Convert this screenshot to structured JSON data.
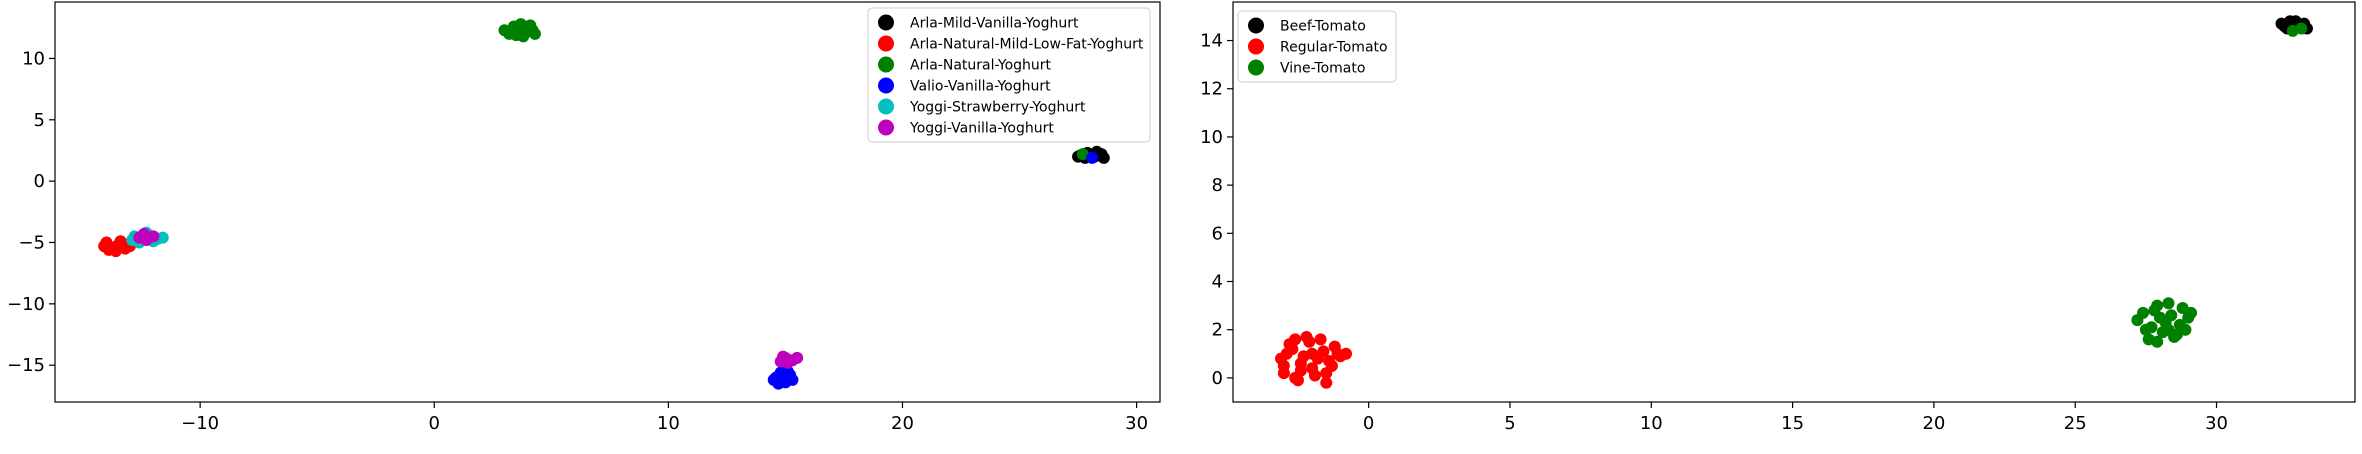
{
  "chart_data": [
    {
      "type": "scatter",
      "title": "",
      "xlabel": "",
      "ylabel": "",
      "xlim": [
        -16.2,
        31
      ],
      "ylim": [
        -18,
        14.6
      ],
      "xticks": [
        -10,
        0,
        10,
        20,
        30
      ],
      "yticks": [
        -15,
        -10,
        -5,
        0,
        5,
        10
      ],
      "xtick_labels": [
        "−10",
        "0",
        "10",
        "20",
        "30"
      ],
      "ytick_labels": [
        "−15",
        "−10",
        "−5",
        "0",
        "5",
        "10"
      ],
      "grid": false,
      "legend_position": "top-right",
      "series": [
        {
          "name": "Arla-Mild-Vanilla-Yoghurt",
          "color": "#000000",
          "points": [
            [
              27.6,
              2.1
            ],
            [
              27.9,
              2.3
            ],
            [
              28.2,
              2.0
            ],
            [
              28.5,
              2.2
            ],
            [
              27.8,
              1.9
            ],
            [
              28.3,
              2.4
            ],
            [
              28.6,
              1.9
            ],
            [
              28.0,
              2.1
            ],
            [
              27.5,
              2.0
            ],
            [
              28.4,
              2.1
            ]
          ]
        },
        {
          "name": "Arla-Natural-Mild-Low-Fat-Yoghurt",
          "color": "#ff0000",
          "points": [
            [
              -14.0,
              -5.0
            ],
            [
              -13.8,
              -5.4
            ],
            [
              -13.5,
              -5.2
            ],
            [
              -13.2,
              -5.5
            ],
            [
              -13.9,
              -5.6
            ],
            [
              -13.4,
              -4.9
            ],
            [
              -13.0,
              -5.3
            ],
            [
              -13.6,
              -5.7
            ],
            [
              -14.1,
              -5.3
            ],
            [
              -13.3,
              -5.1
            ]
          ]
        },
        {
          "name": "Arla-Natural-Yoghurt",
          "color": "#008000",
          "points": [
            [
              3.2,
              12.0
            ],
            [
              3.6,
              12.4
            ],
            [
              3.9,
              12.1
            ],
            [
              4.2,
              12.3
            ],
            [
              3.4,
              12.6
            ],
            [
              3.8,
              11.8
            ],
            [
              4.1,
              12.7
            ],
            [
              3.0,
              12.3
            ],
            [
              3.7,
              12.8
            ],
            [
              4.3,
              12.0
            ],
            [
              3.5,
              11.9
            ],
            [
              27.7,
              2.2
            ]
          ]
        },
        {
          "name": "Valio-Vanilla-Yoghurt",
          "color": "#0000ff",
          "points": [
            [
              14.6,
              -16.0
            ],
            [
              14.9,
              -16.3
            ],
            [
              15.2,
              -15.8
            ],
            [
              15.0,
              -16.4
            ],
            [
              14.8,
              -15.6
            ],
            [
              15.3,
              -16.2
            ],
            [
              14.7,
              -16.5
            ],
            [
              15.1,
              -15.5
            ],
            [
              14.5,
              -16.2
            ],
            [
              28.1,
              1.9
            ]
          ]
        },
        {
          "name": "Yoggi-Strawberry-Yoghurt",
          "color": "#00bfbf",
          "points": [
            [
              -12.9,
              -4.8
            ],
            [
              -12.5,
              -4.6
            ],
            [
              -12.2,
              -4.4
            ],
            [
              -11.8,
              -4.7
            ],
            [
              -12.6,
              -5.0
            ],
            [
              -12.0,
              -4.9
            ],
            [
              -11.6,
              -4.6
            ],
            [
              -12.3,
              -4.2
            ],
            [
              -12.8,
              -4.5
            ]
          ]
        },
        {
          "name": "Yoggi-Vanilla-Yoghurt",
          "color": "#bf00bf",
          "points": [
            [
              -12.6,
              -4.6
            ],
            [
              -12.3,
              -4.8
            ],
            [
              -12.0,
              -4.5
            ],
            [
              -12.4,
              -4.3
            ],
            [
              15.0,
              -14.4
            ],
            [
              15.3,
              -14.6
            ],
            [
              14.8,
              -14.7
            ],
            [
              15.5,
              -14.4
            ],
            [
              15.1,
              -14.8
            ],
            [
              14.9,
              -14.3
            ]
          ]
        }
      ]
    },
    {
      "type": "scatter",
      "title": "",
      "xlabel": "",
      "ylabel": "",
      "xlim": [
        -4.8,
        34.9
      ],
      "ylim": [
        -1.0,
        15.6
      ],
      "xticks": [
        0,
        5,
        10,
        15,
        20,
        25,
        30
      ],
      "yticks": [
        0,
        2,
        4,
        6,
        8,
        10,
        12,
        14
      ],
      "xtick_labels": [
        "0",
        "5",
        "10",
        "15",
        "20",
        "25",
        "30"
      ],
      "ytick_labels": [
        "0",
        "2",
        "4",
        "6",
        "8",
        "10",
        "12",
        "14"
      ],
      "grid": false,
      "legend_position": "top-left",
      "series": [
        {
          "name": "Beef-Tomato",
          "color": "#000000",
          "points": [
            [
              32.3,
              14.7
            ],
            [
              32.6,
              14.8
            ],
            [
              32.9,
              14.6
            ],
            [
              33.1,
              14.7
            ],
            [
              32.5,
              14.5
            ],
            [
              32.8,
              14.8
            ],
            [
              32.4,
              14.6
            ],
            [
              33.2,
              14.5
            ]
          ]
        },
        {
          "name": "Regular-Tomato",
          "color": "#ff0000",
          "points": [
            [
              -3.0,
              0.5
            ],
            [
              -2.7,
              1.2
            ],
            [
              -2.4,
              0.3
            ],
            [
              -2.1,
              1.5
            ],
            [
              -1.8,
              0.8
            ],
            [
              -1.5,
              0.2
            ],
            [
              -1.2,
              1.3
            ],
            [
              -2.9,
              1.0
            ],
            [
              -2.6,
              0.0
            ],
            [
              -2.3,
              0.9
            ],
            [
              -2.0,
              0.4
            ],
            [
              -1.7,
              1.6
            ],
            [
              -1.4,
              0.7
            ],
            [
              -1.1,
              1.0
            ],
            [
              -2.8,
              1.4
            ],
            [
              -2.5,
              -0.1
            ],
            [
              -2.2,
              1.7
            ],
            [
              -1.9,
              0.1
            ],
            [
              -1.6,
              1.1
            ],
            [
              -1.3,
              0.5
            ],
            [
              -3.1,
              0.8
            ],
            [
              -2.4,
              0.6
            ],
            [
              -2.0,
              1.0
            ],
            [
              -1.0,
              0.9
            ],
            [
              -2.6,
              1.6
            ],
            [
              -1.5,
              -0.2
            ],
            [
              -0.8,
              1.0
            ],
            [
              -3.0,
              0.2
            ]
          ]
        },
        {
          "name": "Vine-Tomato",
          "color": "#008000",
          "points": [
            [
              27.2,
              2.4
            ],
            [
              27.5,
              2.0
            ],
            [
              27.8,
              2.8
            ],
            [
              28.1,
              1.9
            ],
            [
              28.4,
              2.6
            ],
            [
              28.7,
              2.2
            ],
            [
              29.0,
              2.5
            ],
            [
              27.6,
              1.6
            ],
            [
              27.9,
              3.0
            ],
            [
              28.2,
              2.3
            ],
            [
              28.5,
              1.7
            ],
            [
              28.8,
              2.9
            ],
            [
              27.4,
              2.7
            ],
            [
              27.7,
              2.1
            ],
            [
              28.0,
              2.5
            ],
            [
              28.3,
              3.1
            ],
            [
              28.6,
              1.8
            ],
            [
              28.9,
              2.0
            ],
            [
              29.1,
              2.7
            ],
            [
              27.9,
              1.5
            ],
            [
              28.3,
              2.0
            ],
            [
              32.7,
              14.4
            ],
            [
              33.0,
              14.5
            ]
          ]
        }
      ]
    }
  ]
}
